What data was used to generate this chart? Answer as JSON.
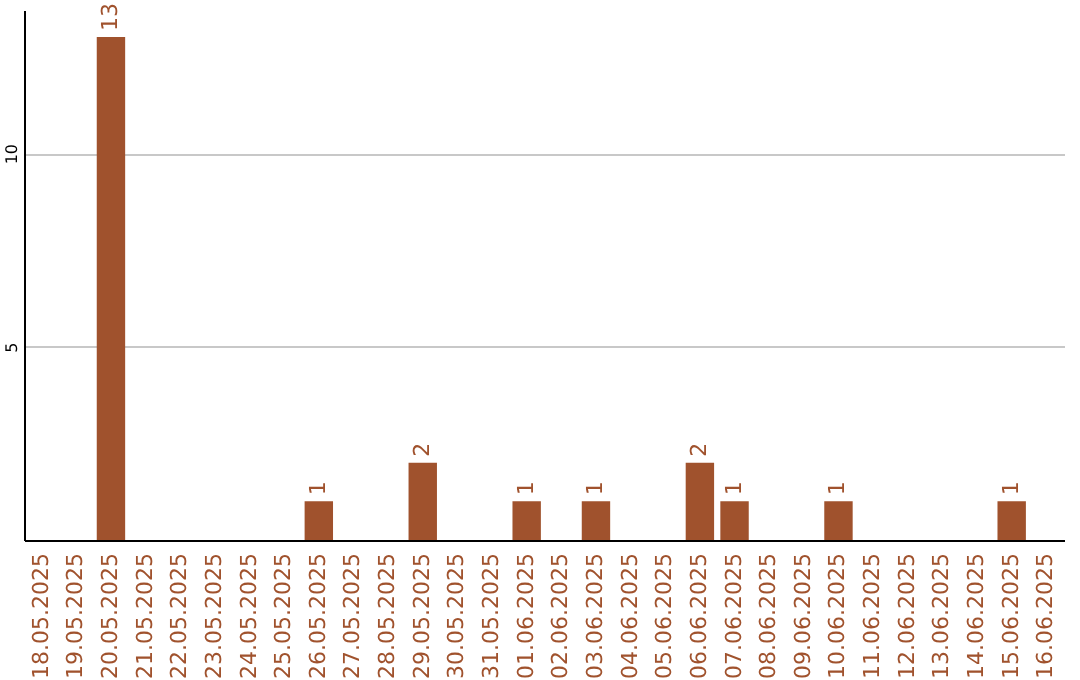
{
  "chart_data": {
    "type": "bar",
    "categories": [
      "18.05.2025",
      "19.05.2025",
      "20.05.2025",
      "21.05.2025",
      "22.05.2025",
      "23.05.2025",
      "24.05.2025",
      "25.05.2025",
      "26.05.2025",
      "27.05.2025",
      "28.05.2025",
      "29.05.2025",
      "30.05.2025",
      "31.05.2025",
      "01.06.2025",
      "02.06.2025",
      "03.06.2025",
      "04.06.2025",
      "05.06.2025",
      "06.06.2025",
      "07.06.2025",
      "08.06.2025",
      "09.06.2025",
      "10.06.2025",
      "11.06.2025",
      "12.06.2025",
      "13.06.2025",
      "14.06.2025",
      "15.06.2025",
      "16.06.2025"
    ],
    "values": [
      0,
      0,
      13,
      0,
      0,
      0,
      0,
      0,
      1,
      0,
      0,
      2,
      0,
      0,
      1,
      0,
      1,
      0,
      0,
      2,
      1,
      0,
      0,
      1,
      0,
      0,
      0,
      0,
      1,
      0
    ],
    "value_labels": [
      null,
      null,
      "13",
      null,
      null,
      null,
      null,
      null,
      "1",
      null,
      null,
      "2",
      null,
      null,
      "1",
      null,
      "1",
      null,
      null,
      "2",
      "1",
      null,
      null,
      "1",
      null,
      null,
      null,
      null,
      "1",
      null
    ],
    "color": "#a0522d",
    "ylim": [
      0,
      13.7
    ],
    "yticks": [
      5,
      10
    ],
    "grid": "y"
  }
}
